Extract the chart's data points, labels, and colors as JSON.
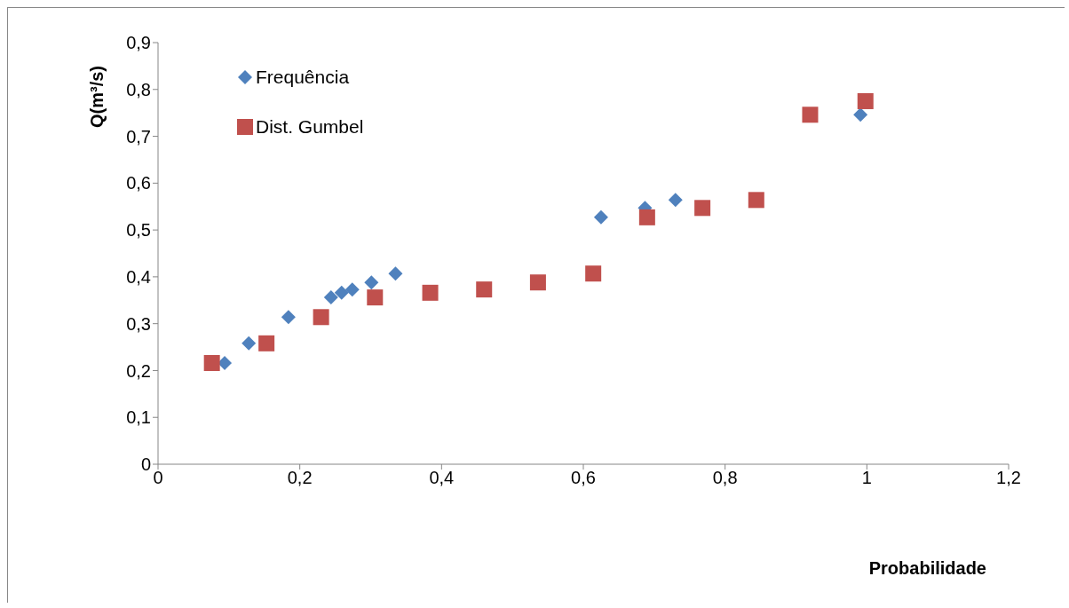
{
  "chart_data": {
    "type": "scatter",
    "xlabel": "Probabilidade",
    "ylabel": "Q(m³/s)",
    "xlim": [
      0,
      1.2
    ],
    "xticks": [
      0,
      {
        "value": 0.2,
        "label": "0,2"
      },
      {
        "value": 0.4,
        "label": "0,4"
      },
      {
        "value": 0.6,
        "label": "0,6"
      },
      {
        "value": 0.8,
        "label": "0,8"
      },
      1,
      {
        "value": 1.2,
        "label": "1,2"
      }
    ],
    "ylim": [
      0,
      0.9
    ],
    "yticks": [
      0,
      {
        "value": 0.1,
        "label": "0,1"
      },
      {
        "value": 0.2,
        "label": "0,2"
      },
      {
        "value": 0.3,
        "label": "0,3"
      },
      {
        "value": 0.4,
        "label": "0,4"
      },
      {
        "value": 0.5,
        "label": "0,5"
      },
      {
        "value": 0.6,
        "label": "0,6"
      },
      {
        "value": 0.7,
        "label": "0,7"
      },
      {
        "value": 0.8,
        "label": "0,8"
      },
      {
        "value": 0.9,
        "label": "0,9"
      }
    ],
    "grid": false,
    "legend": "top left",
    "series": [
      {
        "name": "Frequência",
        "color": "#4f81bd",
        "marker": "diamond",
        "x": [
          0.094,
          0.128,
          0.184,
          0.244,
          0.259,
          0.274,
          0.301,
          0.335,
          0.625,
          0.687,
          0.73,
          0.991
        ],
        "values": [
          0.216,
          0.258,
          0.314,
          0.356,
          0.366,
          0.373,
          0.388,
          0.407,
          0.527,
          0.547,
          0.564,
          0.746
        ]
      },
      {
        "name": "Dist. Gumbel",
        "color": "#c0504d",
        "marker": "square",
        "x": [
          0.076,
          0.153,
          0.23,
          0.306,
          0.384,
          0.46,
          0.536,
          0.614,
          0.69,
          0.768,
          0.844,
          0.92,
          0.998
        ],
        "values": [
          0.216,
          0.258,
          0.314,
          0.356,
          0.366,
          0.373,
          0.388,
          0.407,
          0.527,
          0.547,
          0.564,
          0.746,
          0.775
        ]
      }
    ]
  }
}
